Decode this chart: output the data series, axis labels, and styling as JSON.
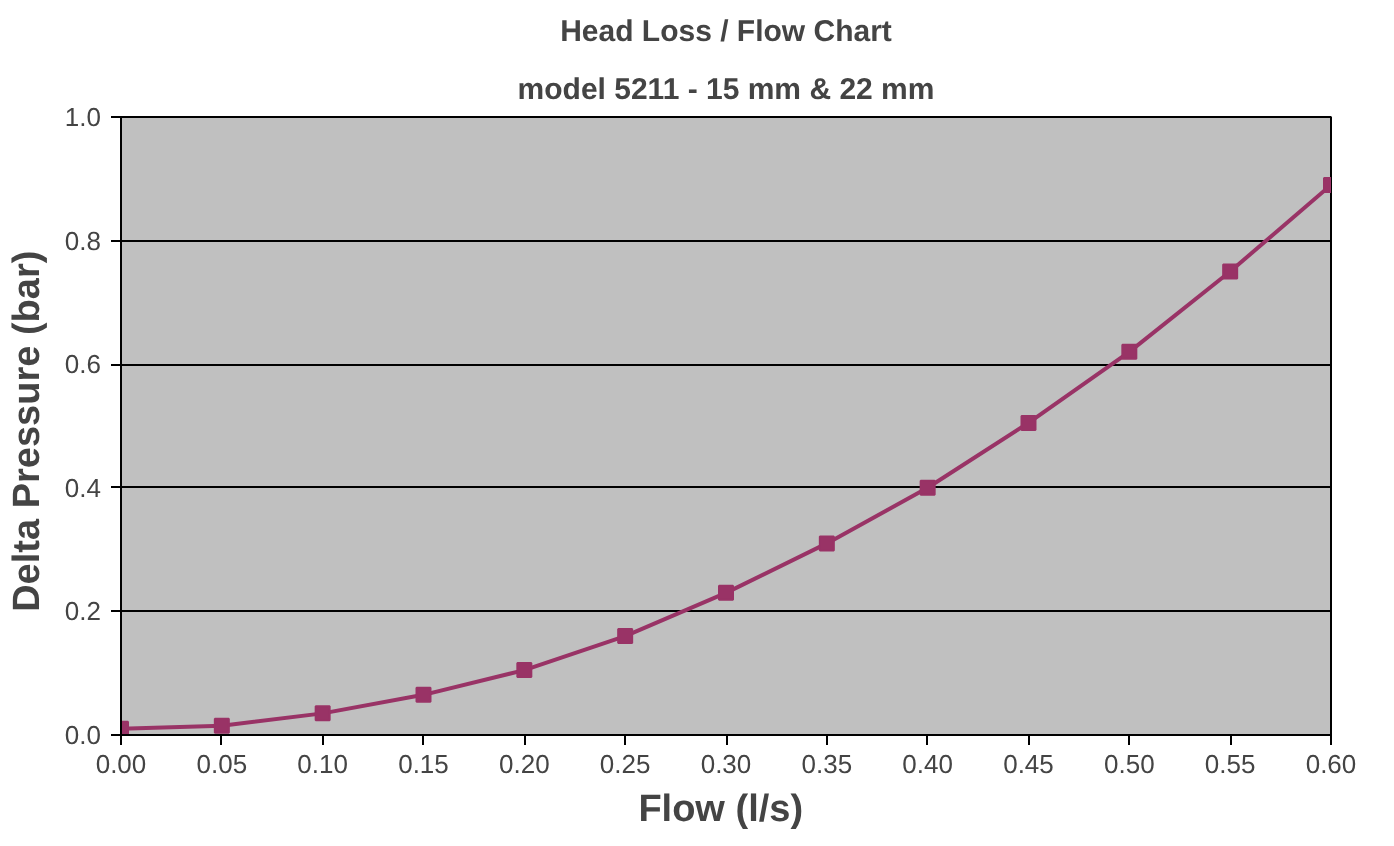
{
  "chart_data": {
    "type": "line",
    "title": "Head Loss / Flow Chart",
    "subtitle": "model 5211 - 15 mm & 22 mm",
    "xlabel": "Flow  (l/s)",
    "ylabel": "Delta Pressure  (bar)",
    "x": [
      0.0,
      0.05,
      0.1,
      0.15,
      0.2,
      0.25,
      0.3,
      0.35,
      0.4,
      0.45,
      0.5,
      0.55,
      0.6
    ],
    "series": [
      {
        "color": "#993366",
        "values": [
          0.01,
          0.015,
          0.035,
          0.065,
          0.105,
          0.16,
          0.23,
          0.31,
          0.4,
          0.505,
          0.62,
          0.75,
          0.89
        ]
      }
    ],
    "xlim": [
      0.0,
      0.6
    ],
    "ylim": [
      0.0,
      1.0
    ],
    "xticks": [
      {
        "value": 0.0,
        "label": "0.00"
      },
      {
        "value": 0.05,
        "label": "0.05"
      },
      {
        "value": 0.1,
        "label": "0.10"
      },
      {
        "value": 0.15,
        "label": "0.15"
      },
      {
        "value": 0.2,
        "label": "0.20"
      },
      {
        "value": 0.25,
        "label": "0.25"
      },
      {
        "value": 0.3,
        "label": "0.30"
      },
      {
        "value": 0.35,
        "label": "0.35"
      },
      {
        "value": 0.4,
        "label": "0.40"
      },
      {
        "value": 0.45,
        "label": "0.45"
      },
      {
        "value": 0.5,
        "label": "0.50"
      },
      {
        "value": 0.55,
        "label": "0.55"
      },
      {
        "value": 0.6,
        "label": "0.60"
      }
    ],
    "yticks": [
      {
        "value": 0.0,
        "label": "0.0"
      },
      {
        "value": 0.2,
        "label": "0.2"
      },
      {
        "value": 0.4,
        "label": "0.4"
      },
      {
        "value": 0.6,
        "label": "0.6"
      },
      {
        "value": 0.8,
        "label": "0.8"
      },
      {
        "value": 1.0,
        "label": "1.0"
      }
    ],
    "grid": "y",
    "marker": "square",
    "line_style": "solid"
  }
}
